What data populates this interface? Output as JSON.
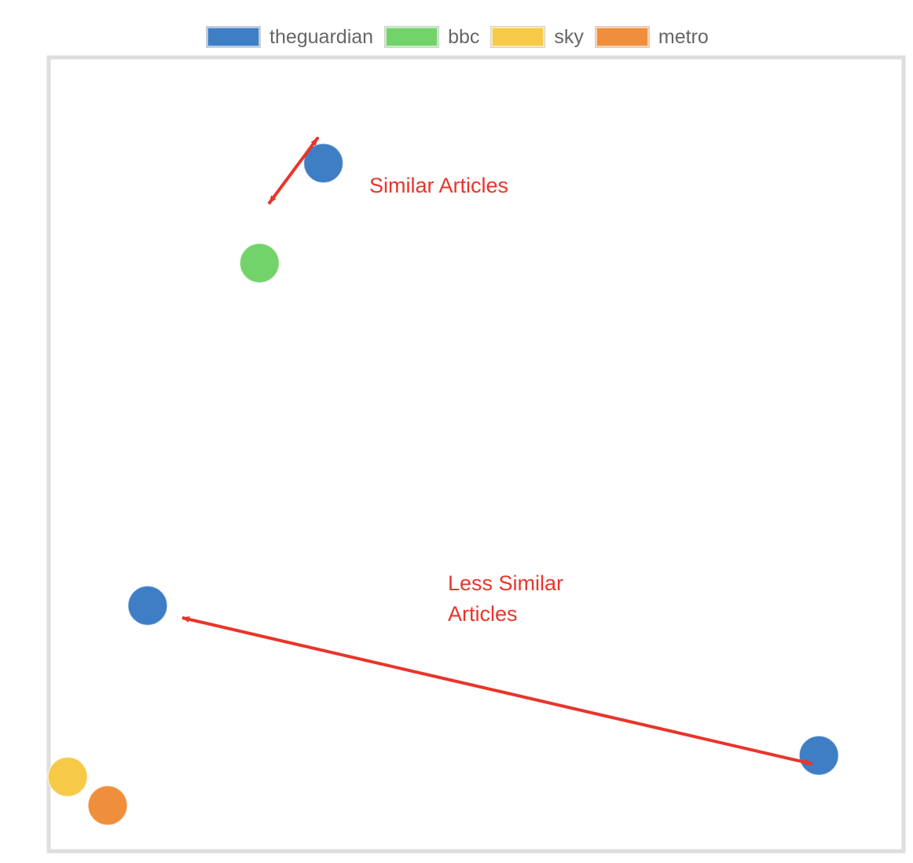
{
  "legend": [
    {
      "label": "theguardian",
      "color": "#3E7EC5"
    },
    {
      "label": "bbc",
      "color": "#73D36B"
    },
    {
      "label": "sky",
      "color": "#F6C946"
    },
    {
      "label": "metro",
      "color": "#EF8F3C"
    }
  ],
  "annotations": {
    "similar": "Similar Articles",
    "less_similar_line1": "Less Similar",
    "less_similar_line2": "Articles",
    "color": "#E8352B"
  },
  "chart_data": {
    "type": "scatter",
    "title": "",
    "xlabel": "",
    "ylabel": "",
    "xlim": [
      0,
      100
    ],
    "ylim": [
      0,
      100
    ],
    "grid": false,
    "legend_position": "top-center",
    "series": [
      {
        "name": "theguardian",
        "color": "#3E7EC5",
        "points": [
          [
            33,
            93
          ],
          [
            11,
            31
          ],
          [
            95,
            10
          ]
        ]
      },
      {
        "name": "bbc",
        "color": "#73D36B",
        "points": [
          [
            25,
            79
          ]
        ]
      },
      {
        "name": "sky",
        "color": "#F6C946",
        "points": [
          [
            1,
            7
          ]
        ]
      },
      {
        "name": "metro",
        "color": "#EF8F3C",
        "points": [
          [
            6,
            3
          ]
        ]
      }
    ]
  }
}
